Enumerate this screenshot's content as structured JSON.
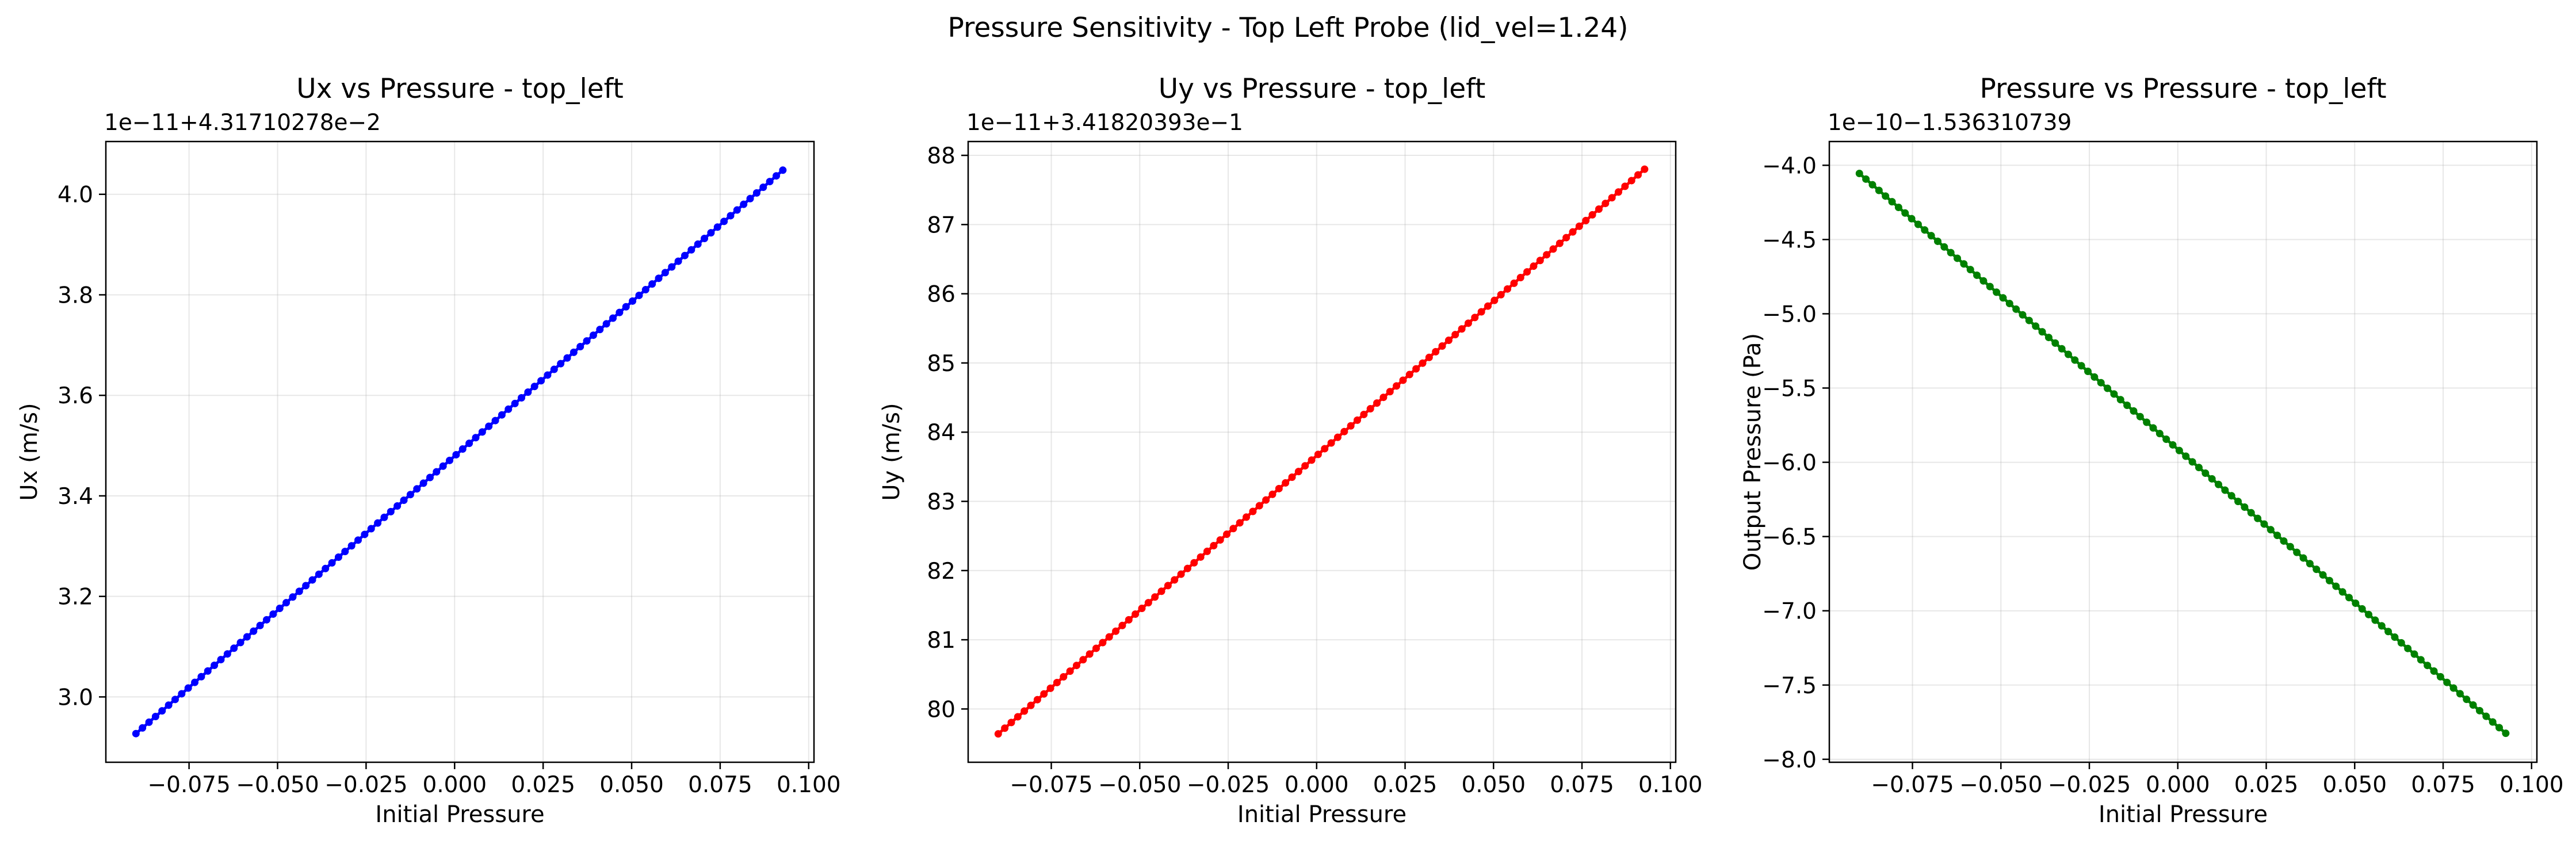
{
  "figure": {
    "suptitle": "Pressure Sensitivity - Top Left Probe (lid_vel=1.24)"
  },
  "chart_data": [
    {
      "type": "line",
      "title": "Ux vs Pressure - top_left",
      "xlabel": "Initial Pressure",
      "ylabel": "Ux (m/s)",
      "offset_text": "1e−11+4.31710278e−2",
      "color": "#0000ff",
      "marker": "circle",
      "grid": true,
      "xlim": [
        -0.0985,
        0.1015
      ],
      "ylim": [
        2.87,
        4.105
      ],
      "xticks": [
        -0.075,
        -0.05,
        -0.025,
        0.0,
        0.025,
        0.05,
        0.075,
        0.1
      ],
      "xtick_labels": [
        "−0.075",
        "−0.050",
        "−0.025",
        "0.000",
        "0.025",
        "0.050",
        "0.075",
        "0.100"
      ],
      "yticks": [
        3.0,
        3.2,
        3.4,
        3.6,
        3.8,
        4.0
      ],
      "ytick_labels": [
        "3.0",
        "3.2",
        "3.4",
        "3.6",
        "3.8",
        "4.0"
      ],
      "series": [
        {
          "x_start": -0.09,
          "x_end": 0.0927,
          "y_start": 2.927,
          "y_end": 4.048,
          "n_points": 100
        }
      ]
    },
    {
      "type": "line",
      "title": "Uy vs Pressure - top_left",
      "xlabel": "Initial Pressure",
      "ylabel": "Uy (m/s)",
      "offset_text": "1e−11+3.41820393e−1",
      "color": "#ff0000",
      "marker": "circle",
      "grid": true,
      "xlim": [
        -0.0985,
        0.1015
      ],
      "ylim": [
        79.23,
        88.2
      ],
      "xticks": [
        -0.075,
        -0.05,
        -0.025,
        0.0,
        0.025,
        0.05,
        0.075,
        0.1
      ],
      "xtick_labels": [
        "−0.075",
        "−0.050",
        "−0.025",
        "0.000",
        "0.025",
        "0.050",
        "0.075",
        "0.100"
      ],
      "yticks": [
        80,
        81,
        82,
        83,
        84,
        85,
        86,
        87,
        88
      ],
      "ytick_labels": [
        "80",
        "81",
        "82",
        "83",
        "84",
        "85",
        "86",
        "87",
        "88"
      ],
      "series": [
        {
          "x_start": -0.09,
          "x_end": 0.0927,
          "y_start": 79.64,
          "y_end": 87.8,
          "n_points": 100
        }
      ]
    },
    {
      "type": "line",
      "title": "Pressure vs Pressure - top_left",
      "xlabel": "Initial Pressure",
      "ylabel": "Output Pressure (Pa)",
      "offset_text": "1e−10−1.536310739",
      "color": "#008000",
      "marker": "circle",
      "grid": true,
      "xlim": [
        -0.0985,
        0.1015
      ],
      "ylim": [
        -8.02,
        -3.84
      ],
      "xticks": [
        -0.075,
        -0.05,
        -0.025,
        0.0,
        0.025,
        0.05,
        0.075,
        0.1
      ],
      "xtick_labels": [
        "−0.075",
        "−0.050",
        "−0.025",
        "0.000",
        "0.025",
        "0.050",
        "0.075",
        "0.100"
      ],
      "yticks": [
        -8.0,
        -7.5,
        -7.0,
        -6.5,
        -6.0,
        -5.5,
        -5.0,
        -4.5,
        -4.0
      ],
      "ytick_labels": [
        "−8.0",
        "−7.5",
        "−7.0",
        "−6.5",
        "−6.0",
        "−5.5",
        "−5.0",
        "−4.5",
        "−4.0"
      ],
      "series": [
        {
          "x_start": -0.09,
          "x_end": 0.0927,
          "y_start": -4.055,
          "y_end": -7.825,
          "n_points": 100
        }
      ]
    }
  ]
}
